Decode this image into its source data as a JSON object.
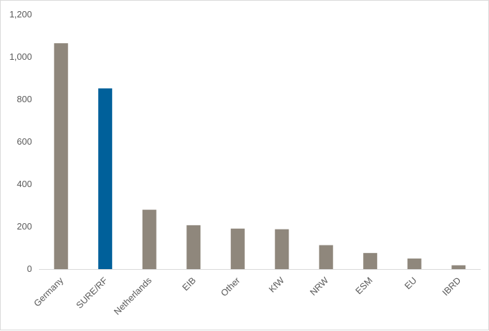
{
  "chart_data": {
    "type": "bar",
    "title": "",
    "xlabel": "",
    "ylabel": "",
    "categories": [
      "Germany",
      "SURE/RF",
      "Netherlands",
      "EIB",
      "Other",
      "KfW",
      "NRW",
      "ESM",
      "EU",
      "IBRD"
    ],
    "values": [
      1065,
      852,
      280,
      207,
      191,
      188,
      113,
      76,
      50,
      18
    ],
    "ylim": [
      0,
      1200
    ],
    "yticks": [
      0,
      200,
      400,
      600,
      800,
      1000,
      1200
    ],
    "ytick_labels": [
      "0",
      "200",
      "400",
      "600",
      "800",
      "1,000",
      "1,200"
    ],
    "grid": false,
    "legend": "none",
    "colors": {
      "default_bar": "#8f877c",
      "highlight_bar": "#00609a",
      "axis": "#d9d9d9",
      "tick_text": "#595959"
    },
    "highlight_category": "SURE/RF"
  }
}
